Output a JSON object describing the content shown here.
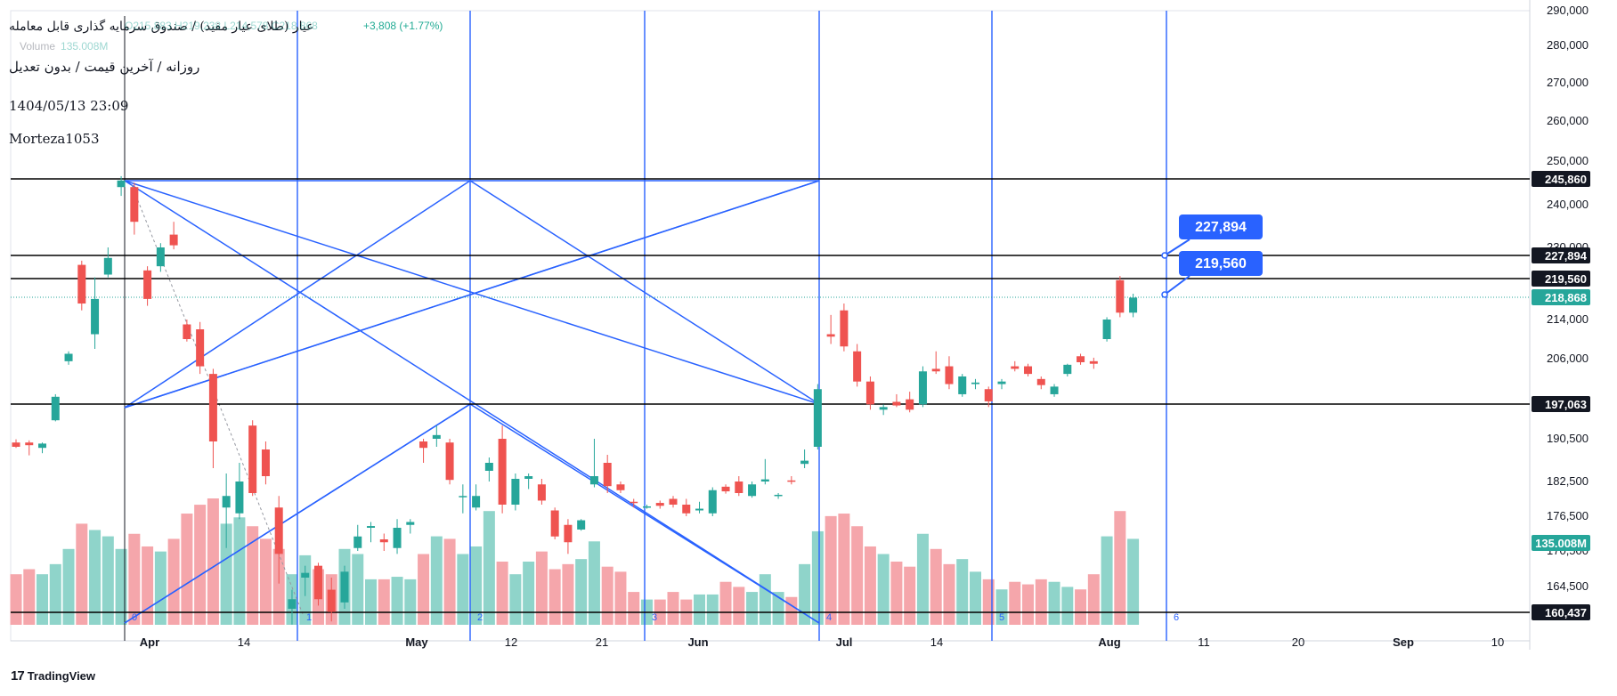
{
  "header": {
    "title": "عیار (طلای عیار مفید) / صندوق سرمایه گذاری قابل معامله",
    "ohlc_faded": "O215,883 H219,238 L214,578 C218,868",
    "change": "+3,808 (+1.77%)",
    "volume_label": "Volume",
    "volume_value": "135.008M",
    "subtitle": "روزانه / آخرین قیمت / بدون تعدیل",
    "datetime": "1404/05/13 23:09",
    "author": "Morteza1053"
  },
  "branding": {
    "logo_text": "TradingView",
    "logo_mark": "17"
  },
  "colors": {
    "up": "#26a69a",
    "down": "#ef5350",
    "up_volume": "#8fd4ca",
    "down_volume": "#f5a6ab",
    "drawing_blue": "#2962ff",
    "hline": "#000000",
    "last_price_badge": "#26a69a"
  },
  "chart_data": {
    "type": "candlestick",
    "title": "عیار (طلای عیار مفید) / صندوق سرمایه گذاری قابل معامله",
    "ylim": [
      158000,
      292000
    ],
    "y_ticks": [
      "164,500",
      "170,500",
      "176,500",
      "182,500",
      "190,500",
      "197,063",
      "206,000",
      "214,000",
      "219,560",
      "227,894",
      "230,000",
      "240,000",
      "245,860",
      "250,000",
      "260,000",
      "270,000",
      "280,000",
      "290,000"
    ],
    "x_ticks": [
      "Apr",
      "14",
      "May",
      "12",
      "21",
      "Jun",
      "Jul",
      "14",
      "Aug",
      "11",
      "20",
      "Sep",
      "10"
    ],
    "horizontal_levels": [
      245860,
      227894,
      219560,
      197063,
      160437
    ],
    "level_labels": [
      "245,860",
      "227,894",
      "219,560",
      "197,063",
      "160,437"
    ],
    "last_price": 218868,
    "last_price_label": "218,868",
    "last_volume_label": "135.008M",
    "callouts": [
      "227,894",
      "219,560"
    ],
    "cycle_labels": [
      "0",
      "1",
      "2",
      "3",
      "4",
      "5",
      "6"
    ],
    "candles": [
      {
        "o": 189800,
        "h": 190400,
        "l": 188800,
        "c": 189000
      },
      {
        "o": 189800,
        "h": 190200,
        "l": 187400,
        "c": 189300
      },
      {
        "o": 188800,
        "h": 189800,
        "l": 187800,
        "c": 189600
      },
      {
        "o": 194000,
        "h": 199000,
        "l": 193800,
        "c": 198500
      },
      {
        "o": 205500,
        "h": 207500,
        "l": 204800,
        "c": 207000
      },
      {
        "o": 224500,
        "h": 226000,
        "l": 216000,
        "c": 217500
      },
      {
        "o": 211000,
        "h": 220000,
        "l": 208000,
        "c": 218500
      },
      {
        "o": 221000,
        "h": 230000,
        "l": 220000,
        "c": 227000
      },
      {
        "o": 244000,
        "h": 246500,
        "l": 242000,
        "c": 245500
      },
      {
        "o": 244000,
        "h": 245000,
        "l": 233000,
        "c": 236000
      },
      {
        "o": 222500,
        "h": 224000,
        "l": 217000,
        "c": 218500
      },
      {
        "o": 224000,
        "h": 231000,
        "l": 222000,
        "c": 230000
      },
      {
        "o": 233000,
        "h": 236000,
        "l": 229500,
        "c": 230500
      },
      {
        "o": 213000,
        "h": 214000,
        "l": 209500,
        "c": 210000
      },
      {
        "o": 212000,
        "h": 213500,
        "l": 203000,
        "c": 204500
      },
      {
        "o": 203000,
        "h": 204000,
        "l": 185000,
        "c": 190000
      },
      {
        "o": 178000,
        "h": 184000,
        "l": 171000,
        "c": 180000
      },
      {
        "o": 177000,
        "h": 186000,
        "l": 176000,
        "c": 182500
      },
      {
        "o": 193000,
        "h": 194000,
        "l": 180000,
        "c": 180500
      },
      {
        "o": 188500,
        "h": 190000,
        "l": 182000,
        "c": 183500
      },
      {
        "o": 178000,
        "h": 180000,
        "l": 165000,
        "c": 170000
      },
      {
        "o": 161000,
        "h": 164000,
        "l": 158500,
        "c": 162500
      },
      {
        "o": 166000,
        "h": 168000,
        "l": 163000,
        "c": 166800
      },
      {
        "o": 168000,
        "h": 168500,
        "l": 161500,
        "c": 162500
      },
      {
        "o": 164000,
        "h": 166000,
        "l": 159000,
        "c": 160500
      },
      {
        "o": 162000,
        "h": 168000,
        "l": 161000,
        "c": 167000
      },
      {
        "o": 171000,
        "h": 175000,
        "l": 170500,
        "c": 173000
      },
      {
        "o": 174500,
        "h": 175500,
        "l": 172000,
        "c": 174800
      },
      {
        "o": 172500,
        "h": 173500,
        "l": 170500,
        "c": 172000
      },
      {
        "o": 171000,
        "h": 176000,
        "l": 170000,
        "c": 174500
      },
      {
        "o": 175000,
        "h": 176000,
        "l": 173500,
        "c": 175500
      },
      {
        "o": 190000,
        "h": 190500,
        "l": 186000,
        "c": 188800
      },
      {
        "o": 190500,
        "h": 193000,
        "l": 189000,
        "c": 191200
      },
      {
        "o": 189800,
        "h": 190500,
        "l": 182000,
        "c": 182800
      },
      {
        "o": 180000,
        "h": 182000,
        "l": 177000,
        "c": 180000
      },
      {
        "o": 178000,
        "h": 182000,
        "l": 177500,
        "c": 180000
      },
      {
        "o": 184500,
        "h": 187000,
        "l": 182500,
        "c": 186000
      },
      {
        "o": 190500,
        "h": 193000,
        "l": 177000,
        "c": 178500
      },
      {
        "o": 178500,
        "h": 184000,
        "l": 177500,
        "c": 183000
      },
      {
        "o": 183000,
        "h": 184000,
        "l": 181200,
        "c": 183500
      },
      {
        "o": 182000,
        "h": 183000,
        "l": 178500,
        "c": 179200
      },
      {
        "o": 177500,
        "h": 178000,
        "l": 172500,
        "c": 173000
      },
      {
        "o": 175000,
        "h": 176000,
        "l": 170000,
        "c": 172000
      },
      {
        "o": 174200,
        "h": 176000,
        "l": 174000,
        "c": 175800
      },
      {
        "o": 182000,
        "h": 190500,
        "l": 181500,
        "c": 183500
      },
      {
        "o": 186000,
        "h": 187500,
        "l": 180500,
        "c": 181700
      },
      {
        "o": 182000,
        "h": 182500,
        "l": 180500,
        "c": 181000
      },
      {
        "o": 179000,
        "h": 179500,
        "l": 178000,
        "c": 178800
      },
      {
        "o": 178000,
        "h": 178500,
        "l": 177800,
        "c": 178200
      },
      {
        "o": 178800,
        "h": 179200,
        "l": 177800,
        "c": 178300
      },
      {
        "o": 179500,
        "h": 180000,
        "l": 178000,
        "c": 178500
      },
      {
        "o": 178500,
        "h": 179500,
        "l": 176500,
        "c": 177000
      },
      {
        "o": 177500,
        "h": 179000,
        "l": 177000,
        "c": 177800
      },
      {
        "o": 177000,
        "h": 181500,
        "l": 176500,
        "c": 181000
      },
      {
        "o": 181600,
        "h": 182000,
        "l": 180400,
        "c": 180800
      },
      {
        "o": 182500,
        "h": 183500,
        "l": 180000,
        "c": 180500
      },
      {
        "o": 180000,
        "h": 182500,
        "l": 179700,
        "c": 182000
      },
      {
        "o": 182500,
        "h": 186700,
        "l": 182000,
        "c": 182900
      },
      {
        "o": 180000,
        "h": 180500,
        "l": 179500,
        "c": 180200
      },
      {
        "o": 182700,
        "h": 183500,
        "l": 182000,
        "c": 182500
      },
      {
        "o": 185800,
        "h": 188500,
        "l": 185000,
        "c": 186400
      },
      {
        "o": 189000,
        "h": 201000,
        "l": 188500,
        "c": 200000
      },
      {
        "o": 211000,
        "h": 215000,
        "l": 209000,
        "c": 210500
      },
      {
        "o": 216000,
        "h": 217500,
        "l": 207500,
        "c": 208500
      },
      {
        "o": 207500,
        "h": 209000,
        "l": 200500,
        "c": 201500
      },
      {
        "o": 201500,
        "h": 202500,
        "l": 196000,
        "c": 197000
      },
      {
        "o": 196000,
        "h": 197000,
        "l": 195000,
        "c": 196500
      },
      {
        "o": 197500,
        "h": 199000,
        "l": 196500,
        "c": 196800
      },
      {
        "o": 198000,
        "h": 199500,
        "l": 195500,
        "c": 196000
      },
      {
        "o": 197000,
        "h": 204500,
        "l": 196500,
        "c": 203500
      },
      {
        "o": 204000,
        "h": 207500,
        "l": 203000,
        "c": 203500
      },
      {
        "o": 204500,
        "h": 206500,
        "l": 200000,
        "c": 201000
      },
      {
        "o": 199000,
        "h": 203000,
        "l": 198500,
        "c": 202500
      },
      {
        "o": 201000,
        "h": 202000,
        "l": 200000,
        "c": 201300
      },
      {
        "o": 200000,
        "h": 200500,
        "l": 196500,
        "c": 197600
      },
      {
        "o": 201000,
        "h": 202000,
        "l": 200000,
        "c": 201500
      },
      {
        "o": 204500,
        "h": 205500,
        "l": 203500,
        "c": 204000
      },
      {
        "o": 204500,
        "h": 205000,
        "l": 202500,
        "c": 203000
      },
      {
        "o": 202000,
        "h": 202500,
        "l": 200000,
        "c": 200800
      },
      {
        "o": 199000,
        "h": 201000,
        "l": 198500,
        "c": 200500
      },
      {
        "o": 203000,
        "h": 205000,
        "l": 202500,
        "c": 204800
      },
      {
        "o": 206500,
        "h": 207000,
        "l": 204800,
        "c": 205300
      },
      {
        "o": 205500,
        "h": 206200,
        "l": 204000,
        "c": 205000
      },
      {
        "o": 210000,
        "h": 214500,
        "l": 209500,
        "c": 214000
      },
      {
        "o": 219500,
        "h": 220500,
        "l": 214500,
        "c": 215500
      },
      {
        "o": 215500,
        "h": 219000,
        "l": 214500,
        "c": 218800
      }
    ],
    "volumes": [
      40,
      44,
      40,
      48,
      60,
      80,
      75,
      70,
      60,
      72,
      62,
      58,
      68,
      88,
      95,
      100,
      80,
      85,
      78,
      68,
      60,
      40,
      55,
      44,
      40,
      60,
      56,
      36,
      36,
      38,
      36,
      56,
      70,
      68,
      56,
      62,
      90,
      50,
      40,
      50,
      58,
      44,
      48,
      52,
      66,
      46,
      42,
      26,
      20,
      20,
      26,
      20,
      24,
      24,
      34,
      30,
      26,
      40,
      26,
      22,
      48,
      74,
      86,
      88,
      78,
      62,
      56,
      50,
      46,
      72,
      60,
      48,
      52,
      42,
      36,
      28,
      34,
      32,
      36,
      34,
      30,
      28,
      40,
      70,
      90,
      68
    ]
  }
}
